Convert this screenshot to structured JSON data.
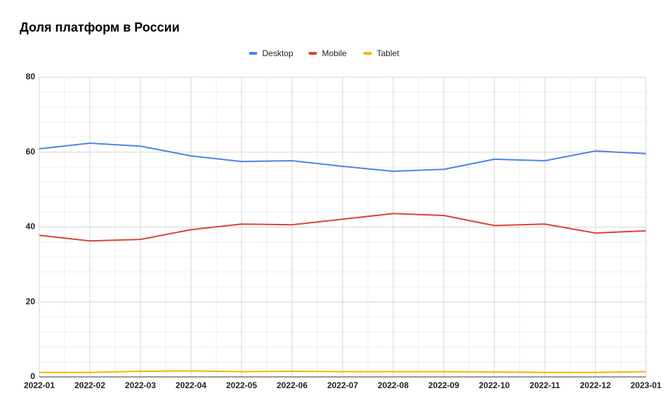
{
  "chart_data": {
    "type": "line",
    "title": "Доля платформ в России",
    "categories": [
      "2022-01",
      "2022-02",
      "2022-03",
      "2022-04",
      "2022-05",
      "2022-06",
      "2022-07",
      "2022-08",
      "2022-09",
      "2022-10",
      "2022-11",
      "2022-12",
      "2023-01"
    ],
    "series": [
      {
        "name": "Desktop",
        "color": "#4a86e8",
        "values": [
          60.9,
          62.4,
          61.6,
          59.0,
          57.5,
          57.7,
          56.2,
          54.9,
          55.4,
          58.1,
          57.7,
          60.3,
          59.6
        ]
      },
      {
        "name": "Mobile",
        "color": "#db4437",
        "values": [
          37.8,
          36.3,
          36.7,
          39.3,
          40.8,
          40.6,
          42.1,
          43.6,
          43.1,
          40.4,
          40.8,
          38.4,
          39.0
        ]
      },
      {
        "name": "Tablet",
        "color": "#f4b400",
        "values": [
          1.2,
          1.2,
          1.5,
          1.6,
          1.4,
          1.5,
          1.4,
          1.4,
          1.4,
          1.3,
          1.2,
          1.2,
          1.4
        ]
      }
    ],
    "ylim": [
      0,
      80
    ],
    "yticks": [
      0,
      20,
      40,
      60,
      80
    ],
    "grid": true,
    "legend": "top"
  }
}
